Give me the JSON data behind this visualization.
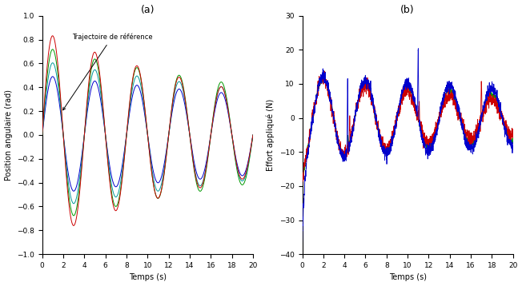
{
  "title_a": "(a)",
  "title_b": "(b)",
  "xlabel": "Temps (s)",
  "ylabel_a": "Position angulaire (rad)",
  "ylabel_b": "Effort appliqué (N)",
  "t_end": 20,
  "ylim_a": [
    -1,
    1
  ],
  "ylim_b": [
    -40,
    30
  ],
  "yticks_a": [
    -1,
    -0.8,
    -0.6,
    -0.4,
    -0.2,
    0,
    0.2,
    0.4,
    0.6,
    0.8,
    1.0
  ],
  "yticks_b": [
    -40,
    -30,
    -20,
    -10,
    0,
    10,
    20,
    30
  ],
  "xticks": [
    0,
    2,
    4,
    6,
    8,
    10,
    12,
    14,
    16,
    18,
    20
  ],
  "colors": [
    "#0000cc",
    "#cc0000",
    "#009900",
    "#009999"
  ],
  "annotation": "Trajectoire de référence",
  "background": "#ffffff"
}
